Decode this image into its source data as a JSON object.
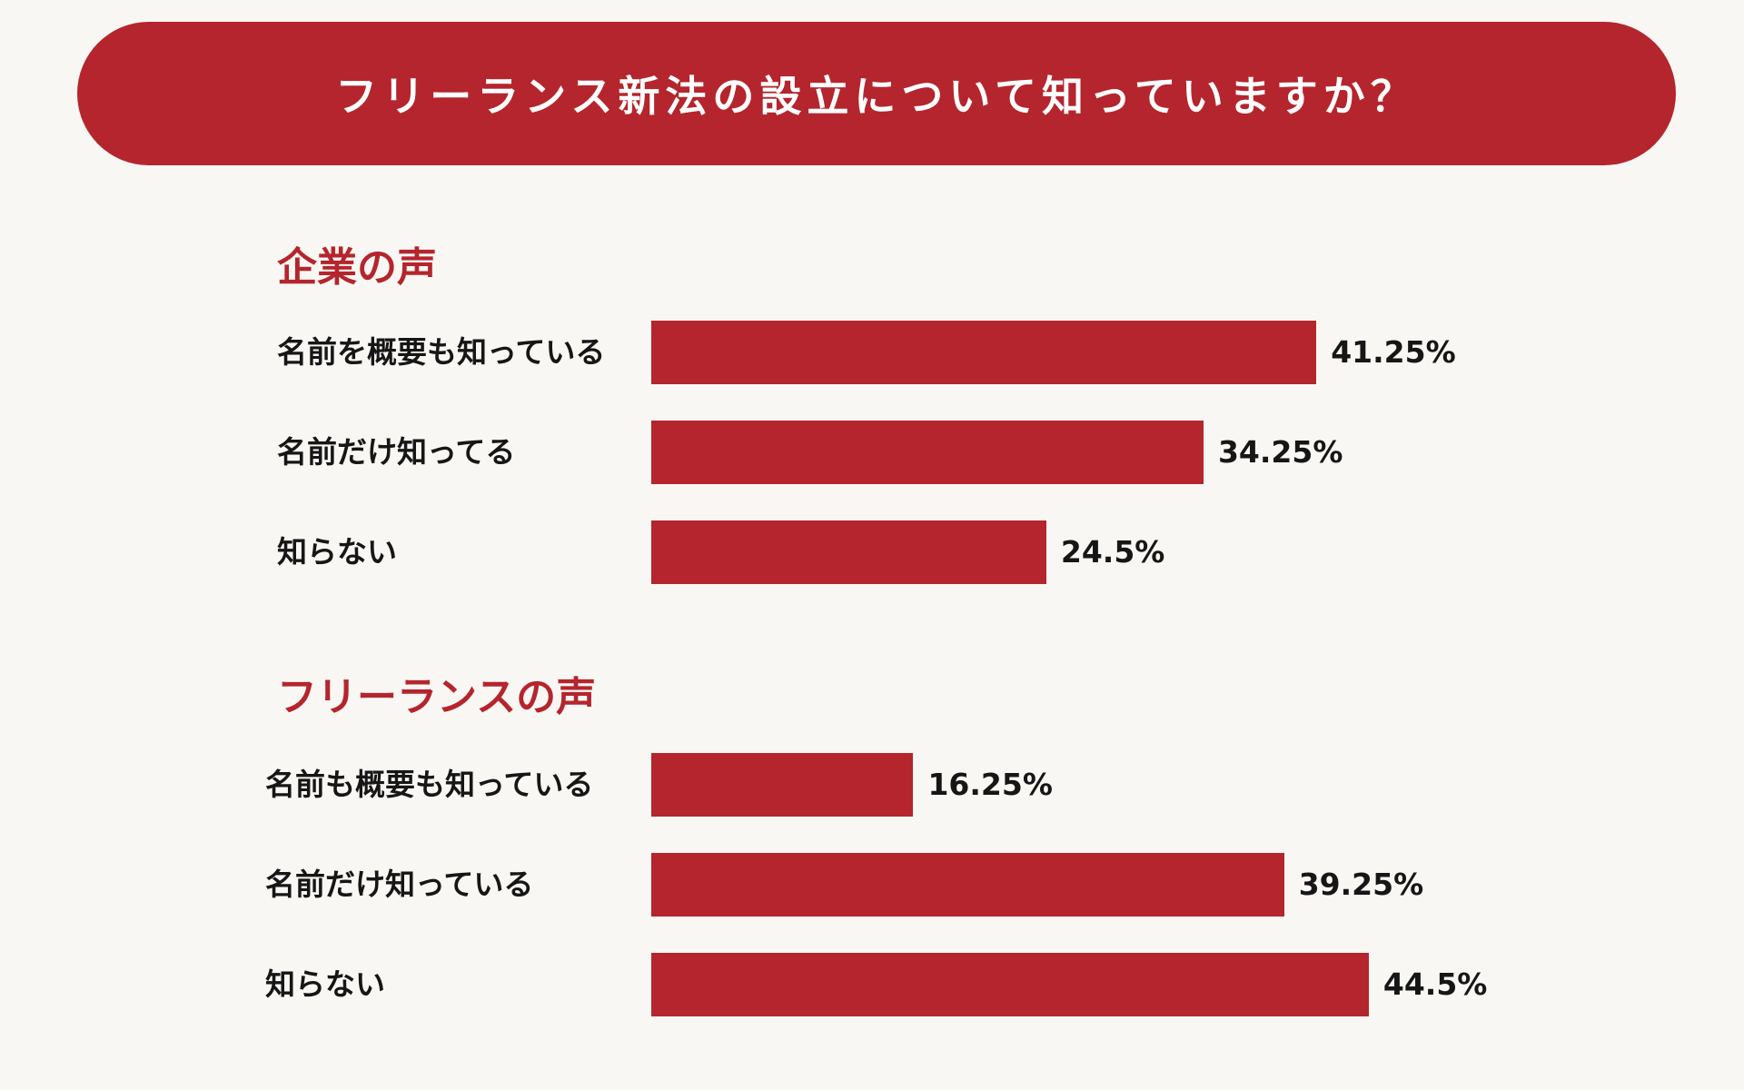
{
  "title": "フリーランス新法の設立について知っていますか？",
  "colors": {
    "accent": "#b5252d",
    "background": "#f8f7f4",
    "text": "#161616"
  },
  "chart_data": [
    {
      "type": "bar",
      "orientation": "horizontal",
      "title": "企業の声",
      "categories": [
        "名前を概要も知っている",
        "名前だけ知ってる",
        "知らない"
      ],
      "values": [
        41.25,
        34.25,
        24.5
      ],
      "value_labels": [
        "41.25%",
        "34.25%",
        "24.5%"
      ],
      "unit": "%"
    },
    {
      "type": "bar",
      "orientation": "horizontal",
      "title": "フリーランスの声",
      "categories": [
        "名前も概要も知っている",
        "名前だけ知っている",
        "知らない"
      ],
      "values": [
        16.25,
        39.25,
        44.5
      ],
      "value_labels": [
        "16.25%",
        "39.25%",
        "44.5%"
      ],
      "unit": "%"
    }
  ]
}
